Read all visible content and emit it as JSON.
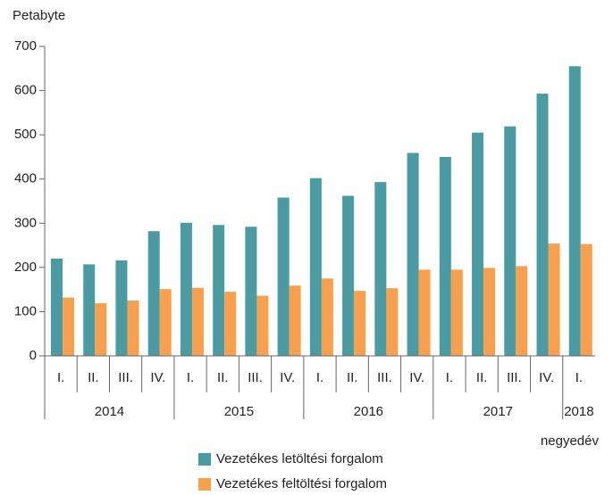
{
  "chart_data": {
    "type": "bar",
    "y_axis_label": "Petabyte",
    "x_axis_label": "negyedév",
    "year_groups": [
      {
        "name": "2014",
        "categories": [
          "I.",
          "II.",
          "III.",
          "IV."
        ]
      },
      {
        "name": "2015",
        "categories": [
          "I.",
          "II.",
          "III.",
          "IV."
        ]
      },
      {
        "name": "2016",
        "categories": [
          "I.",
          "II.",
          "III.",
          "IV."
        ]
      },
      {
        "name": "2017",
        "categories": [
          "I.",
          "II.",
          "III.",
          "IV."
        ]
      },
      {
        "name": "2018",
        "categories": [
          "I."
        ]
      }
    ],
    "series": [
      {
        "name": "Vezetékes letöltési forgalom",
        "color": "#4a9ba2",
        "values": [
          220,
          207,
          216,
          282,
          301,
          296,
          292,
          358,
          402,
          362,
          393,
          459,
          450,
          505,
          519,
          593,
          655
        ]
      },
      {
        "name": "Vezetékes feltöltési forgalom",
        "color": "#f8a04d",
        "values": [
          132,
          119,
          125,
          151,
          154,
          145,
          136,
          159,
          175,
          147,
          153,
          195,
          195,
          199,
          203,
          254,
          253
        ]
      }
    ],
    "ylim": [
      0,
      700
    ],
    "yticks": [
      0,
      100,
      200,
      300,
      400,
      500,
      600,
      700
    ]
  }
}
